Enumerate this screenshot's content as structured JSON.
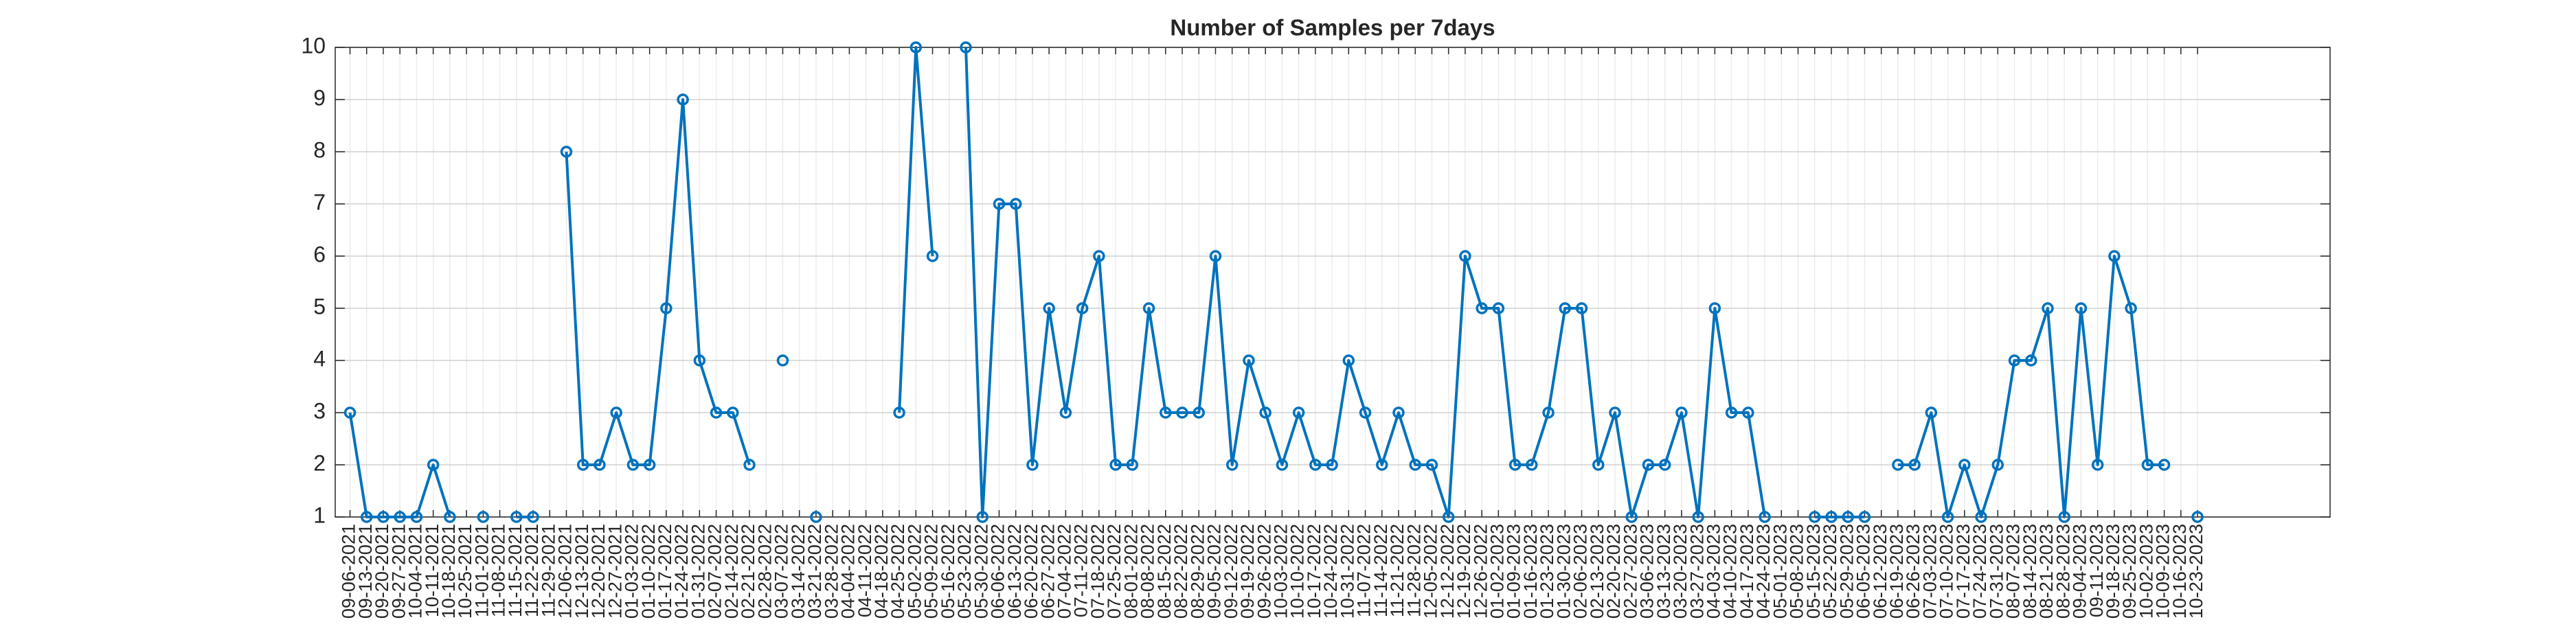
{
  "chart_data": {
    "type": "line",
    "title": "Number of Samples per 7days",
    "categories": [
      "09-06-2021",
      "09-13-2021",
      "09-20-2021",
      "09-27-2021",
      "10-04-2021",
      "10-11-2021",
      "10-18-2021",
      "10-25-2021",
      "11-01-2021",
      "11-08-2021",
      "11-15-2021",
      "11-22-2021",
      "11-29-2021",
      "12-06-2021",
      "12-13-2021",
      "12-20-2021",
      "12-27-2021",
      "01-03-2022",
      "01-10-2022",
      "01-17-2022",
      "01-24-2022",
      "01-31-2022",
      "02-07-2022",
      "02-14-2022",
      "02-21-2022",
      "02-28-2022",
      "03-07-2022",
      "03-14-2022",
      "03-21-2022",
      "03-28-2022",
      "04-04-2022",
      "04-11-2022",
      "04-18-2022",
      "04-25-2022",
      "05-02-2022",
      "05-09-2022",
      "05-16-2022",
      "05-23-2022",
      "05-30-2022",
      "06-06-2022",
      "06-13-2022",
      "06-20-2022",
      "06-27-2022",
      "07-04-2022",
      "07-11-2022",
      "07-18-2022",
      "07-25-2022",
      "08-01-2022",
      "08-08-2022",
      "08-15-2022",
      "08-22-2022",
      "08-29-2022",
      "09-05-2022",
      "09-12-2022",
      "09-19-2022",
      "09-26-2022",
      "10-03-2022",
      "10-10-2022",
      "10-17-2022",
      "10-24-2022",
      "10-31-2022",
      "11-07-2022",
      "11-14-2022",
      "11-21-2022",
      "11-28-2022",
      "12-05-2022",
      "12-12-2022",
      "12-19-2022",
      "12-26-2022",
      "01-02-2023",
      "01-09-2023",
      "01-16-2023",
      "01-23-2023",
      "01-30-2023",
      "02-06-2023",
      "02-13-2023",
      "02-20-2023",
      "02-27-2023",
      "03-06-2023",
      "03-13-2023",
      "03-20-2023",
      "03-27-2023",
      "04-03-2023",
      "04-10-2023",
      "04-17-2023",
      "04-24-2023",
      "05-01-2023",
      "05-08-2023",
      "05-15-2023",
      "05-22-2023",
      "05-29-2023",
      "06-05-2023",
      "06-12-2023",
      "06-19-2023",
      "06-26-2023",
      "07-03-2023",
      "07-10-2023",
      "07-17-2023",
      "07-24-2023",
      "07-31-2023",
      "08-07-2023",
      "08-14-2023",
      "08-21-2023",
      "08-28-2023",
      "09-04-2023",
      "09-11-2023",
      "09-18-2023",
      "09-25-2023",
      "10-02-2023",
      "10-09-2023",
      "10-16-2023",
      "10-23-2023"
    ],
    "series": [
      {
        "color": "#0072bd",
        "values": [
          3,
          1,
          1,
          1,
          1,
          2,
          1,
          null,
          1,
          null,
          1,
          1,
          null,
          8,
          2,
          2,
          3,
          2,
          2,
          5,
          9,
          4,
          3,
          3,
          2,
          null,
          4,
          null,
          1,
          null,
          null,
          null,
          null,
          3,
          10,
          6,
          null,
          10,
          1,
          7,
          7,
          2,
          5,
          3,
          5,
          6,
          2,
          2,
          5,
          3,
          3,
          3,
          6,
          2,
          4,
          3,
          2,
          3,
          2,
          2,
          4,
          3,
          2,
          3,
          2,
          2,
          1,
          6,
          5,
          5,
          2,
          2,
          3,
          5,
          5,
          2,
          3,
          1,
          2,
          2,
          3,
          1,
          5,
          3,
          3,
          1,
          null,
          null,
          1,
          1,
          1,
          1,
          null,
          2,
          2,
          3,
          1,
          2,
          1,
          2,
          4,
          4,
          5,
          1,
          5,
          2,
          6,
          5,
          2,
          2,
          null,
          1
        ]
      }
    ],
    "ylim": [
      1,
      10
    ],
    "yticks": [
      1,
      2,
      3,
      4,
      5,
      6,
      7,
      8,
      9,
      10
    ],
    "grid": true
  }
}
